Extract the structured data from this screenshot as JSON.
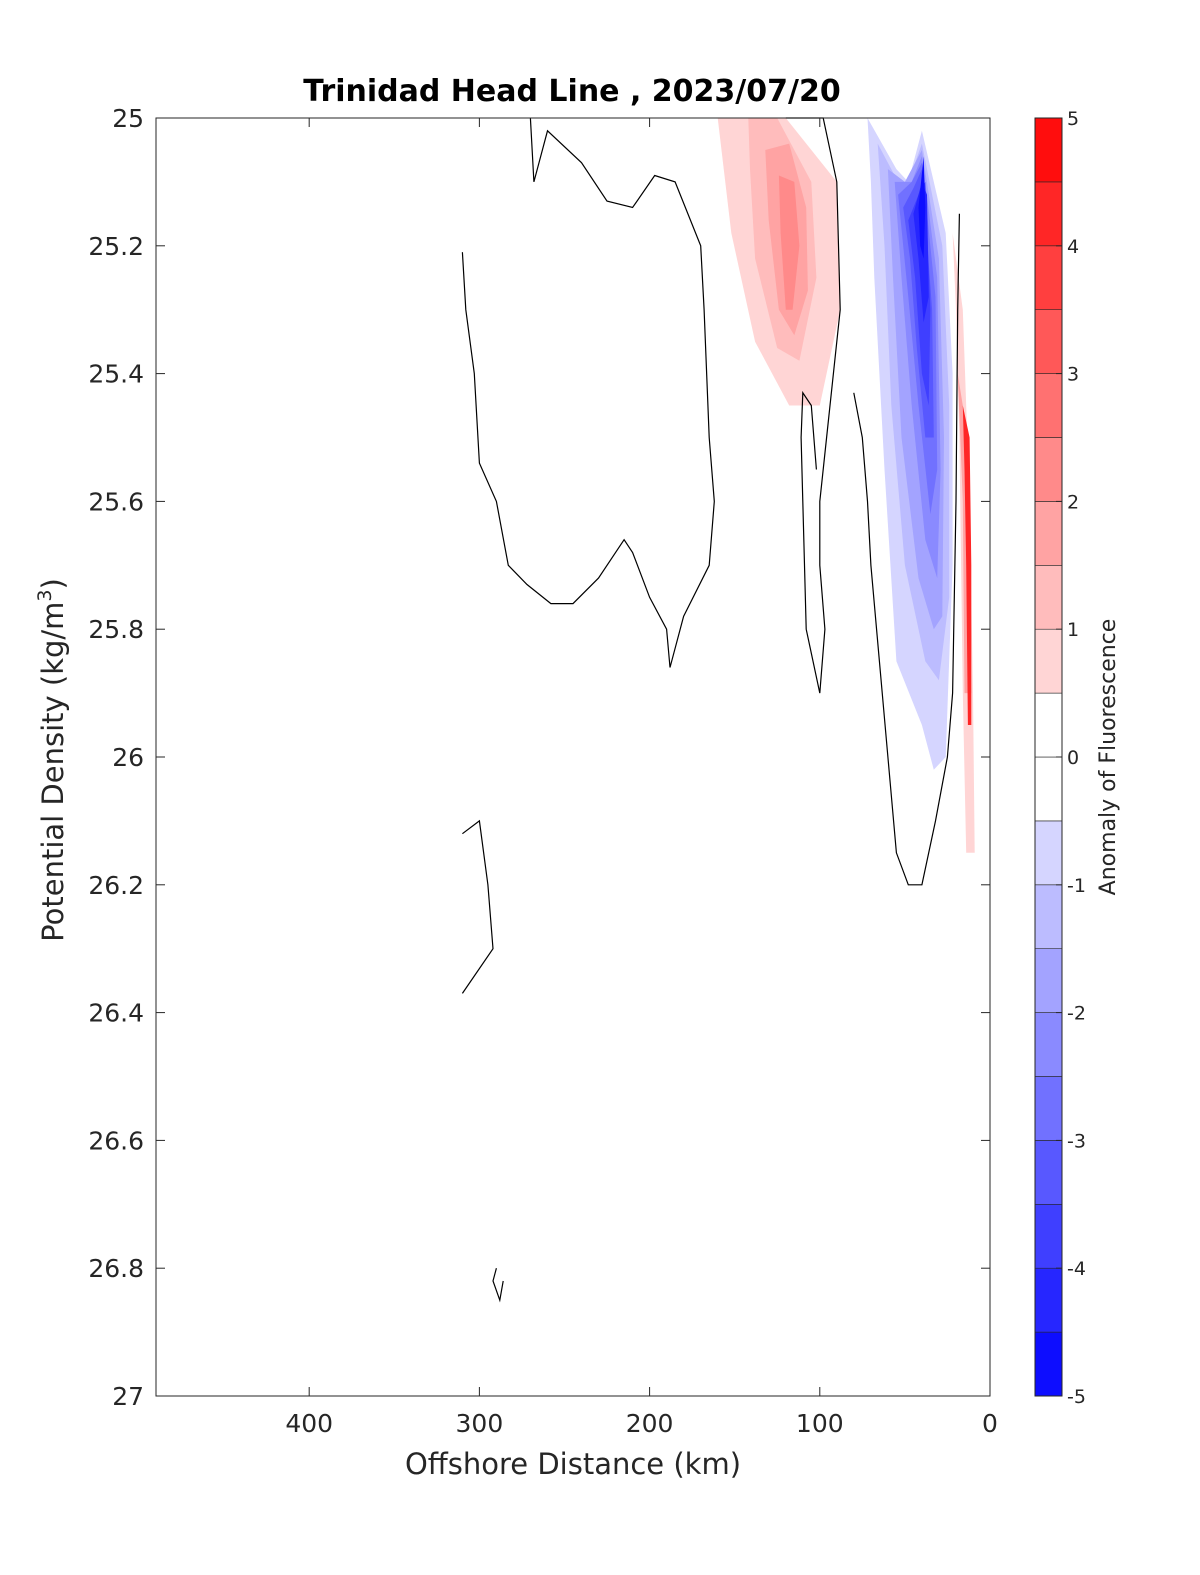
{
  "chart_data": {
    "type": "contour",
    "title": "Trinidad Head Line , 2023/07/20",
    "xlabel": "Offshore Distance (km)",
    "ylabel_main": "Potential Density (kg/m",
    "ylabel_sup": "3",
    "ylabel_close": ")",
    "xlim": [
      490,
      0
    ],
    "x_reversed": true,
    "ylim": [
      25,
      27
    ],
    "y_reversed": true,
    "xticks": [
      400,
      300,
      200,
      100,
      0
    ],
    "xtick_labels": [
      "400",
      "300",
      "200",
      "100",
      "0"
    ],
    "yticks": [
      25,
      25.2,
      25.4,
      25.6,
      25.8,
      26,
      26.2,
      26.4,
      26.6,
      26.8,
      27
    ],
    "ytick_labels": [
      "25",
      "25.2",
      "25.4",
      "25.6",
      "25.8",
      "26",
      "26.2",
      "26.4",
      "26.6",
      "26.8",
      "27"
    ],
    "colorbar": {
      "label": "Anomaly of Fluorescence",
      "range": [
        -5,
        5
      ],
      "levels": [
        -5,
        -4.5,
        -4,
        -3.5,
        -3,
        -2.5,
        -2,
        -1.5,
        -1,
        -0.5,
        0,
        0.5,
        1,
        1.5,
        2,
        2.5,
        3,
        3.5,
        4,
        4.5,
        5
      ],
      "ticks": [
        -5,
        -4,
        -3,
        -2,
        -1,
        0,
        1,
        2,
        3,
        4,
        5
      ],
      "tick_labels": [
        "-5",
        "-4",
        "-3",
        "-2",
        "-1",
        "0",
        "1",
        "2",
        "3",
        "4",
        "5"
      ],
      "colormap": "blue-white-red"
    },
    "filled_regions": [
      {
        "level": 0.5,
        "points": [
          [
            160,
            25
          ],
          [
            120,
            25
          ],
          [
            90,
            25.1
          ],
          [
            88,
            25.3
          ],
          [
            100,
            25.45
          ],
          [
            118,
            25.45
          ],
          [
            138,
            25.35
          ],
          [
            152,
            25.18
          ]
        ]
      },
      {
        "level": 1,
        "points": [
          [
            142,
            25
          ],
          [
            125,
            25
          ],
          [
            105,
            25.1
          ],
          [
            102,
            25.25
          ],
          [
            112,
            25.38
          ],
          [
            125,
            25.36
          ],
          [
            138,
            25.22
          ],
          [
            141,
            25.08
          ]
        ]
      },
      {
        "level": 1.5,
        "points": [
          [
            132,
            25.05
          ],
          [
            118,
            25.04
          ],
          [
            108,
            25.14
          ],
          [
            107,
            25.27
          ],
          [
            115,
            25.34
          ],
          [
            124,
            25.3
          ],
          [
            130,
            25.16
          ]
        ]
      },
      {
        "level": 2,
        "points": [
          [
            124,
            25.09
          ],
          [
            115,
            25.1
          ],
          [
            112,
            25.2
          ],
          [
            116,
            25.3
          ],
          [
            120,
            25.3
          ],
          [
            123,
            25.18
          ]
        ]
      },
      {
        "level": 0.5,
        "points": [
          [
            22,
            25.18
          ],
          [
            16,
            25.3
          ],
          [
            12,
            25.6
          ],
          [
            10,
            25.9
          ],
          [
            9,
            26.15
          ],
          [
            14,
            26.15
          ],
          [
            16,
            25.9
          ],
          [
            18,
            25.5
          ],
          [
            20,
            25.3
          ]
        ]
      },
      {
        "level": 1.5,
        "points": [
          [
            19,
            25.4
          ],
          [
            13,
            25.5
          ],
          [
            12,
            25.7
          ],
          [
            11,
            25.9
          ],
          [
            15,
            25.9
          ],
          [
            16,
            25.6
          ]
        ]
      },
      {
        "level": 4,
        "points": [
          [
            16,
            25.45
          ],
          [
            12,
            25.5
          ],
          [
            11,
            25.7
          ],
          [
            11,
            25.95
          ],
          [
            13,
            25.95
          ],
          [
            14,
            25.7
          ],
          [
            15,
            25.55
          ]
        ]
      },
      {
        "level": -0.5,
        "points": [
          [
            72,
            25
          ],
          [
            55,
            25.08
          ],
          [
            48,
            25.1
          ],
          [
            40,
            25.02
          ],
          [
            26,
            25.18
          ],
          [
            22,
            25.4
          ],
          [
            22,
            25.7
          ],
          [
            26,
            26.0
          ],
          [
            33,
            26.02
          ],
          [
            40,
            25.95
          ],
          [
            55,
            25.85
          ],
          [
            62,
            25.55
          ],
          [
            68,
            25.25
          ],
          [
            70,
            25.1
          ]
        ]
      },
      {
        "level": -1,
        "points": [
          [
            66,
            25.04
          ],
          [
            54,
            25.1
          ],
          [
            48,
            25.1
          ],
          [
            40,
            25.04
          ],
          [
            28,
            25.2
          ],
          [
            24,
            25.45
          ],
          [
            24,
            25.75
          ],
          [
            30,
            25.88
          ],
          [
            38,
            25.85
          ],
          [
            50,
            25.7
          ],
          [
            58,
            25.45
          ],
          [
            62,
            25.2
          ]
        ]
      },
      {
        "level": -1.5,
        "points": [
          [
            60,
            25.08
          ],
          [
            50,
            25.1
          ],
          [
            40,
            25.05
          ],
          [
            30,
            25.22
          ],
          [
            27,
            25.5
          ],
          [
            28,
            25.78
          ],
          [
            33,
            25.8
          ],
          [
            42,
            25.72
          ],
          [
            52,
            25.5
          ],
          [
            57,
            25.25
          ]
        ]
      },
      {
        "level": -2,
        "points": [
          [
            56,
            25.1
          ],
          [
            46,
            25.1
          ],
          [
            40,
            25.06
          ],
          [
            31,
            25.25
          ],
          [
            29,
            25.55
          ],
          [
            31,
            25.72
          ],
          [
            38,
            25.66
          ],
          [
            46,
            25.45
          ],
          [
            52,
            25.25
          ]
        ]
      },
      {
        "level": -2.5,
        "points": [
          [
            54,
            25.12
          ],
          [
            46,
            25.1
          ],
          [
            40,
            25.07
          ],
          [
            32,
            25.28
          ],
          [
            31,
            25.55
          ],
          [
            35,
            25.62
          ],
          [
            42,
            25.45
          ],
          [
            48,
            25.28
          ]
        ]
      },
      {
        "level": -3,
        "points": [
          [
            51,
            25.14
          ],
          [
            45,
            25.11
          ],
          [
            40,
            25.08
          ],
          [
            34,
            25.3
          ],
          [
            33,
            25.5
          ],
          [
            38,
            25.5
          ],
          [
            43,
            25.36
          ],
          [
            47,
            25.22
          ]
        ]
      },
      {
        "level": -3.5,
        "points": [
          [
            48,
            25.16
          ],
          [
            42,
            25.12
          ],
          [
            38,
            25.1
          ],
          [
            35,
            25.3
          ],
          [
            36,
            25.45
          ],
          [
            40,
            25.4
          ],
          [
            44,
            25.25
          ]
        ]
      },
      {
        "level": -4,
        "points": [
          [
            45,
            25.15
          ],
          [
            40,
            25.1
          ],
          [
            37,
            25.12
          ],
          [
            36,
            25.28
          ],
          [
            39,
            25.32
          ],
          [
            42,
            25.22
          ]
        ]
      },
      {
        "level": -4.5,
        "points": [
          [
            42,
            25.14
          ],
          [
            39,
            25.06
          ],
          [
            38,
            25.14
          ],
          [
            39,
            25.22
          ],
          [
            41,
            25.2
          ]
        ]
      }
    ],
    "zero_contours": [
      [
        [
          270,
          25
        ],
        [
          268,
          25.1
        ],
        [
          260,
          25.02
        ],
        [
          240,
          25.07
        ],
        [
          225,
          25.13
        ],
        [
          210,
          25.14
        ],
        [
          197,
          25.09
        ],
        [
          185,
          25.1
        ],
        [
          170,
          25.2
        ],
        [
          168,
          25.3
        ],
        [
          165,
          25.5
        ],
        [
          162,
          25.6
        ],
        [
          165,
          25.7
        ],
        [
          180,
          25.78
        ],
        [
          188,
          25.86
        ],
        [
          190,
          25.8
        ],
        [
          200,
          25.75
        ],
        [
          210,
          25.68
        ],
        [
          215,
          25.66
        ],
        [
          230,
          25.72
        ],
        [
          245,
          25.76
        ],
        [
          258,
          25.76
        ],
        [
          272,
          25.73
        ],
        [
          283,
          25.7
        ],
        [
          290,
          25.6
        ],
        [
          300,
          25.54
        ],
        [
          303,
          25.4
        ],
        [
          308,
          25.3
        ],
        [
          310,
          25.21
        ]
      ],
      [
        [
          120,
          25
        ],
        [
          98,
          25
        ],
        [
          90,
          25.1
        ],
        [
          88,
          25.3
        ],
        [
          96,
          25.5
        ],
        [
          100,
          25.6
        ],
        [
          100,
          25.7
        ],
        [
          97,
          25.8
        ],
        [
          100,
          25.9
        ],
        [
          108,
          25.8
        ],
        [
          110,
          25.6
        ],
        [
          111,
          25.5
        ],
        [
          110,
          25.43
        ],
        [
          105,
          25.45
        ],
        [
          102,
          25.55
        ]
      ],
      [
        [
          80,
          25.43
        ],
        [
          75,
          25.5
        ],
        [
          72,
          25.6
        ],
        [
          70,
          25.7
        ],
        [
          65,
          25.85
        ],
        [
          60,
          26.0
        ],
        [
          55,
          26.15
        ],
        [
          48,
          26.2
        ],
        [
          40,
          26.2
        ],
        [
          32,
          26.1
        ],
        [
          25,
          26.0
        ],
        [
          22,
          25.9
        ],
        [
          20,
          25.6
        ],
        [
          19,
          25.3
        ],
        [
          18,
          25.15
        ]
      ],
      [
        [
          310,
          26.12
        ],
        [
          300,
          26.1
        ],
        [
          295,
          26.2
        ],
        [
          292,
          26.3
        ],
        [
          310,
          26.37
        ]
      ],
      [
        [
          290,
          26.8
        ],
        [
          292,
          26.82
        ],
        [
          288,
          26.85
        ],
        [
          286,
          26.82
        ]
      ]
    ]
  }
}
